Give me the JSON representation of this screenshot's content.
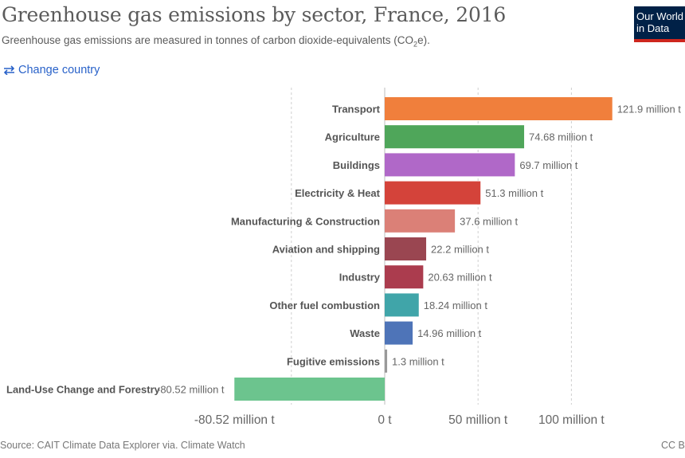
{
  "header": {
    "title": "Greenhouse gas emissions by sector, France, 2016",
    "subtitle_pre": "Greenhouse gas emissions are measured in tonnes of carbon dioxide-equivalents (CO",
    "subtitle_sub": "2",
    "subtitle_post": "e).",
    "change_country": "Change country"
  },
  "logo": {
    "line1": "Our World",
    "line2": "in Data",
    "bg_color": "#002147",
    "accent_color": "#ce261e"
  },
  "footer": {
    "source": "Source: CAIT Climate Data Explorer via. Climate Watch",
    "license": "CC BY"
  },
  "chart_data": {
    "type": "bar",
    "orientation": "horizontal",
    "categories": [
      "Transport",
      "Agriculture",
      "Buildings",
      "Electricity & Heat",
      "Manufacturing & Construction",
      "Aviation and shipping",
      "Industry",
      "Other fuel combustion",
      "Waste",
      "Fugitive emissions",
      "Land-Use Change and Forestry"
    ],
    "values": [
      121.9,
      74.68,
      69.7,
      51.3,
      37.6,
      22.2,
      20.63,
      18.24,
      14.96,
      1.3,
      -80.52
    ],
    "value_labels": [
      "121.9 million t",
      "74.68 million t",
      "69.7 million t",
      "51.3 million t",
      "37.6 million t",
      "22.2 million t",
      "20.63 million t",
      "18.24 million t",
      "14.96 million t",
      "1.3 million t",
      "-80.52 million t"
    ],
    "colors": [
      "#f07f3c",
      "#4fa65a",
      "#b068c8",
      "#d4433a",
      "#db8077",
      "#9a4651",
      "#ab3c4e",
      "#40a5a9",
      "#4e74b8",
      "#999999",
      "#6cc48e"
    ],
    "unit": "million t",
    "xlim": [
      -80.52,
      121.9
    ],
    "xticks": [
      {
        "value": -80.52,
        "label": "-80.52 million t"
      },
      {
        "value": 0,
        "label": "0 t"
      },
      {
        "value": 50,
        "label": "50 million t"
      },
      {
        "value": 100,
        "label": "100 million t"
      }
    ],
    "gridlines": [
      -50,
      50,
      100
    ],
    "grid": true
  }
}
